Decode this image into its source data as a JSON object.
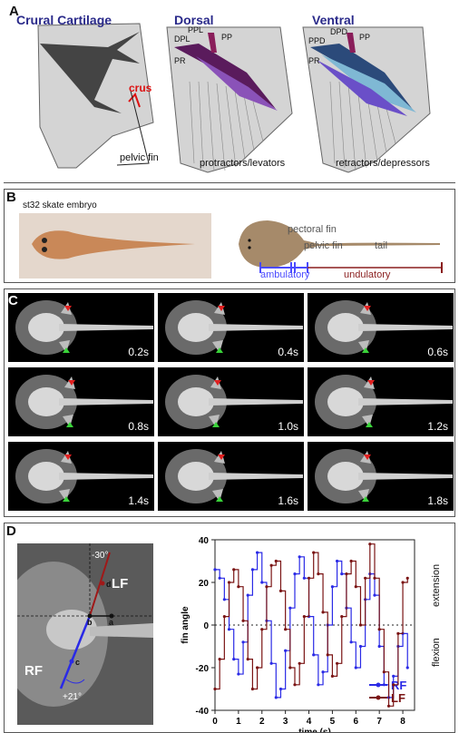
{
  "panels": {
    "a": {
      "label": "A",
      "titles": [
        "Crural Cartilage",
        "Dorsal",
        "Ventral"
      ],
      "crus": "crus",
      "pelvic_fin": "pelvic fin",
      "dorsal_labels": [
        "PPL",
        "DPL",
        "PP",
        "PR"
      ],
      "dorsal_caption": "protractors/levators",
      "ventral_labels": [
        "PPD",
        "DPD",
        "PP",
        "PR"
      ],
      "ventral_caption": "retractors/depressors"
    },
    "b": {
      "label": "B",
      "embryo_caption": "st32 skate embryo",
      "pectoral_fin": "pectoral fin",
      "pelvic_fin": "pelvic fin",
      "tail": "tail",
      "ambulatory": "ambulatory",
      "undulatory": "undulatory"
    },
    "c": {
      "label": "C",
      "times": [
        "0.2s",
        "0.4s",
        "0.6s",
        "0.8s",
        "1.0s",
        "1.2s",
        "1.4s",
        "1.6s",
        "1.8s"
      ]
    },
    "d": {
      "label": "D",
      "image_labels": {
        "lf": "LF",
        "rf": "RF",
        "angle_up": "-30°",
        "angle_down": "+21°",
        "a": "a",
        "b": "b",
        "c": "c",
        "d": "d"
      },
      "side_top": "extension",
      "side_bottom": "flexion"
    }
  },
  "chart_data": {
    "type": "line",
    "xlabel": "time (s)",
    "ylabel": "fin angle",
    "xlim": [
      0,
      8.5
    ],
    "ylim": [
      -40,
      40
    ],
    "xticks": [
      0,
      1,
      2,
      3,
      4,
      5,
      6,
      7,
      8
    ],
    "yticks": [
      40,
      20,
      0,
      -20,
      -40
    ],
    "zero_line": "dotted",
    "legend_position": "bottom-right",
    "series": [
      {
        "name": "RF",
        "color": "#2a2ae6",
        "x": [
          0,
          0.2,
          0.4,
          0.6,
          0.8,
          1.0,
          1.2,
          1.4,
          1.6,
          1.8,
          2.0,
          2.2,
          2.4,
          2.6,
          2.8,
          3.0,
          3.2,
          3.4,
          3.6,
          3.8,
          4.0,
          4.2,
          4.4,
          4.6,
          4.8,
          5.0,
          5.2,
          5.4,
          5.6,
          5.8,
          6.0,
          6.2,
          6.4,
          6.6,
          6.8,
          7.0,
          7.2,
          7.4,
          7.6,
          7.8,
          8.0,
          8.2
        ],
        "y": [
          26,
          22,
          12,
          -2,
          -16,
          -23,
          -8,
          14,
          26,
          34,
          20,
          2,
          -18,
          -34,
          -30,
          -12,
          8,
          24,
          32,
          22,
          4,
          -14,
          -28,
          -22,
          0,
          18,
          30,
          24,
          8,
          -8,
          -20,
          -10,
          12,
          24,
          14,
          -10,
          -28,
          -34,
          -24,
          -10,
          -4,
          -20
        ]
      },
      {
        "name": "LF",
        "color": "#7a1414",
        "x": [
          0,
          0.2,
          0.4,
          0.6,
          0.8,
          1.0,
          1.2,
          1.4,
          1.6,
          1.8,
          2.0,
          2.2,
          2.4,
          2.6,
          2.8,
          3.0,
          3.2,
          3.4,
          3.6,
          3.8,
          4.0,
          4.2,
          4.4,
          4.6,
          4.8,
          5.0,
          5.2,
          5.4,
          5.6,
          5.8,
          6.0,
          6.2,
          6.4,
          6.6,
          6.8,
          7.0,
          7.2,
          7.4,
          7.6,
          7.8,
          8.0,
          8.2
        ],
        "y": [
          -30,
          -16,
          4,
          20,
          26,
          18,
          2,
          -16,
          -30,
          -20,
          -2,
          18,
          28,
          30,
          16,
          -2,
          -20,
          -28,
          -18,
          4,
          22,
          34,
          24,
          6,
          -14,
          -24,
          -18,
          4,
          24,
          30,
          18,
          0,
          22,
          38,
          22,
          -2,
          -22,
          -38,
          -28,
          -4,
          20,
          22
        ]
      }
    ]
  }
}
